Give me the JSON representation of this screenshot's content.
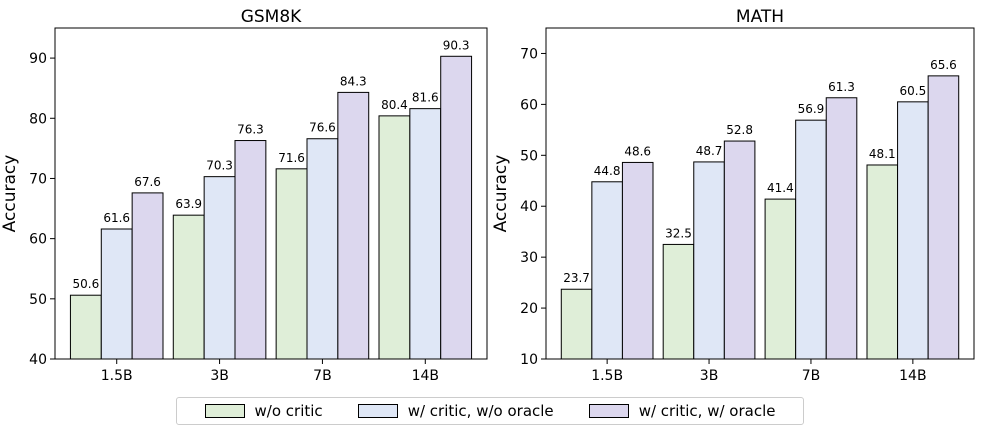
{
  "legend": {
    "items": [
      {
        "label": "w/o critic",
        "color": "#dfeed8"
      },
      {
        "label": "w/ critic, w/o oracle",
        "color": "#dfe7f6"
      },
      {
        "label": "w/ critic, w/ oracle",
        "color": "#dcd7ee"
      }
    ]
  },
  "chart_data": [
    {
      "type": "bar",
      "title": "GSM8K",
      "xlabel": "",
      "ylabel": "Accuracy",
      "ylim": [
        40,
        95
      ],
      "yticks": [
        40,
        50,
        60,
        70,
        80,
        90
      ],
      "categories": [
        "1.5B",
        "3B",
        "7B",
        "14B"
      ],
      "grid": false,
      "series": [
        {
          "name": "w/o critic",
          "color": "#dfeed8",
          "values": [
            50.6,
            63.9,
            71.6,
            80.4
          ]
        },
        {
          "name": "w/ critic, w/o oracle",
          "color": "#dfe7f6",
          "values": [
            61.6,
            70.3,
            76.6,
            81.6
          ]
        },
        {
          "name": "w/ critic, w/ oracle",
          "color": "#dcd7ee",
          "values": [
            67.6,
            76.3,
            84.3,
            90.3
          ]
        }
      ]
    },
    {
      "type": "bar",
      "title": "MATH",
      "xlabel": "",
      "ylabel": "Accuracy",
      "ylim": [
        10,
        75
      ],
      "yticks": [
        10,
        20,
        30,
        40,
        50,
        60,
        70
      ],
      "categories": [
        "1.5B",
        "3B",
        "7B",
        "14B"
      ],
      "grid": false,
      "series": [
        {
          "name": "w/o critic",
          "color": "#dfeed8",
          "values": [
            23.7,
            32.5,
            41.4,
            48.1
          ]
        },
        {
          "name": "w/ critic, w/o oracle",
          "color": "#dfe7f6",
          "values": [
            44.8,
            48.7,
            56.9,
            60.5
          ]
        },
        {
          "name": "w/ critic, w/ oracle",
          "color": "#dcd7ee",
          "values": [
            48.6,
            52.8,
            61.3,
            65.6
          ]
        }
      ]
    }
  ]
}
